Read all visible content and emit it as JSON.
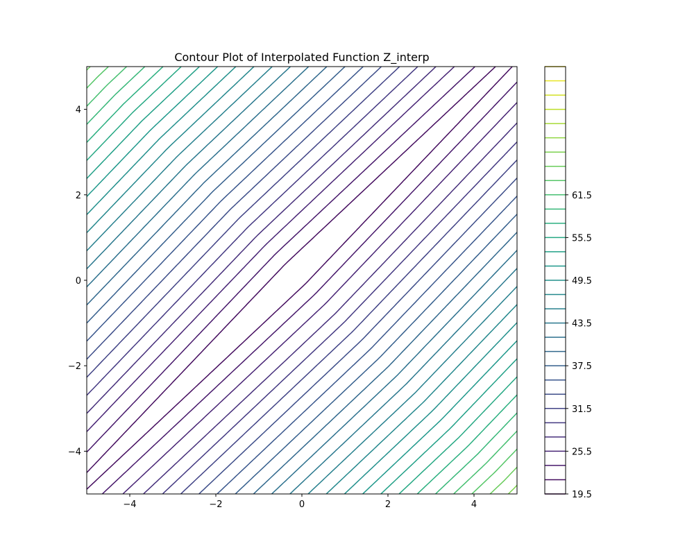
{
  "chart_data": {
    "type": "contour",
    "title": "Contour Plot of Interpolated Function Z_interp",
    "xlabel": "",
    "ylabel": "",
    "xlim": [
      -5,
      5
    ],
    "ylim": [
      -5,
      5
    ],
    "x_ticks": [
      -4,
      -2,
      0,
      2,
      4
    ],
    "y_ticks": [
      -4,
      -2,
      0,
      2,
      4
    ],
    "x_tick_labels": [
      "−4",
      "−2",
      "0",
      "2",
      "4"
    ],
    "y_tick_labels": [
      "−4",
      "−2",
      "0",
      "2",
      "4"
    ],
    "grid": false,
    "colormap": "viridis",
    "level_min": 19.5,
    "level_step": 2,
    "level_count": 31,
    "colorbar": {
      "range": [
        19.5,
        79.5
      ],
      "tick_values": [
        19.5,
        25.5,
        31.5,
        37.5,
        43.5,
        49.5,
        55.5,
        61.5
      ],
      "tick_labels": [
        "19.5",
        "25.5",
        "31.5",
        "37.5",
        "43.5",
        "49.5",
        "55.5",
        "61.5"
      ],
      "colors": [
        "#440154",
        "#482173",
        "#433e85",
        "#38588c",
        "#2d708e",
        "#25858e",
        "#1e9b8a",
        "#2ab07f",
        "#52c569",
        "#86d549",
        "#c2df23",
        "#fde725"
      ]
    }
  }
}
